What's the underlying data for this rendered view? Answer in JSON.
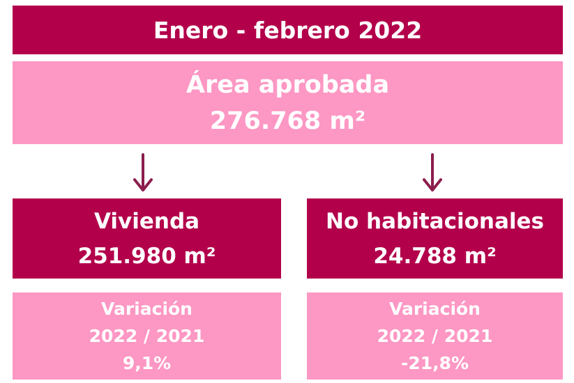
{
  "header": {
    "title": "Enero - febrero 2022"
  },
  "total": {
    "label": "Área aprobada",
    "value": "276.768 m²"
  },
  "branches": [
    {
      "label": "Vivienda",
      "value": "251.980 m²",
      "variation": {
        "label": "Variación",
        "period": "2022 / 2021",
        "value": "9,1%"
      }
    },
    {
      "label": "No habitacionales",
      "value": "24.788 m²",
      "variation": {
        "label": "Variación",
        "period": "2022 / 2021",
        "value": "-21,8%"
      }
    }
  ]
}
